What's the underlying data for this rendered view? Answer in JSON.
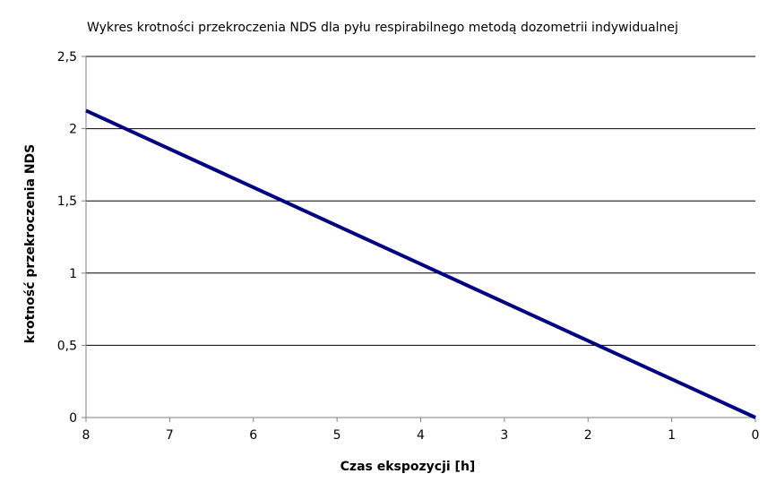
{
  "chart_data": {
    "type": "line",
    "title": "Wykres krotności przekroczenia NDS dla pyłu respirabilnego metodą dozometrii indywidualnej",
    "xlabel": "Czas ekspozycji [h]",
    "ylabel": "krotność przekroczenia NDS",
    "x_reversed": true,
    "xlim": [
      8,
      0
    ],
    "ylim": [
      0,
      2.5
    ],
    "x_ticks": [
      8,
      7,
      6,
      5,
      4,
      3,
      2,
      1,
      0
    ],
    "x_tick_labels": [
      "8",
      "7",
      "6",
      "5",
      "4",
      "3",
      "2",
      "1",
      "0"
    ],
    "y_ticks": [
      0,
      0.5,
      1,
      1.5,
      2,
      2.5
    ],
    "y_tick_labels": [
      "0",
      "0,5",
      "1",
      "1,5",
      "2",
      "2,5"
    ],
    "grid": "horizontal",
    "legend": "none",
    "series": [
      {
        "color": "#000080",
        "points": [
          {
            "x": 8,
            "y": 2.125
          },
          {
            "x": 0,
            "y": 0
          }
        ]
      }
    ]
  }
}
